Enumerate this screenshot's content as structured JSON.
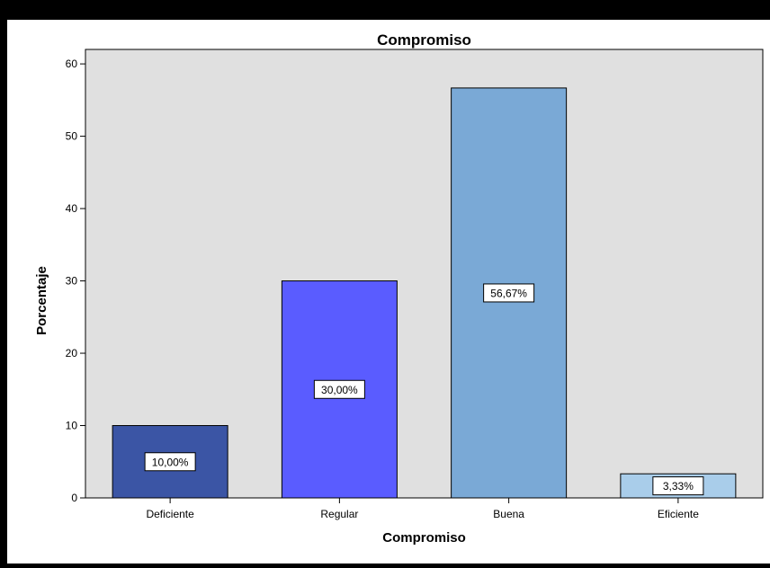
{
  "chart_data": {
    "type": "bar",
    "title": "Compromiso",
    "xlabel": "Compromiso",
    "ylabel": "Porcentaje",
    "ylim": [
      0,
      62
    ],
    "yticks": [
      0,
      10,
      20,
      30,
      40,
      50,
      60
    ],
    "categories": [
      "Deficiente",
      "Regular",
      "Buena",
      "Eficiente"
    ],
    "values": [
      10.0,
      30.0,
      56.67,
      3.33
    ],
    "data_labels": [
      "10,00%",
      "30,00%",
      "56,67%",
      "3,33%"
    ],
    "colors": [
      "#3b55a5",
      "#5a5cff",
      "#7aa9d6",
      "#a9cdea"
    ],
    "plot_background": "#e0e0e0",
    "grid": false,
    "legend": "none"
  }
}
